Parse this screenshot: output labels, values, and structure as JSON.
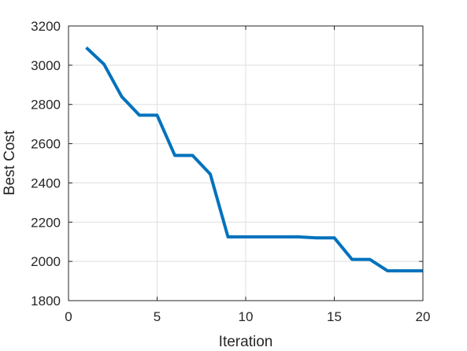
{
  "chart_data": {
    "type": "line",
    "title": "",
    "xlabel": "Iteration",
    "ylabel": "Best Cost",
    "xlim": [
      0,
      20
    ],
    "ylim": [
      1800,
      3200
    ],
    "xticks": [
      0,
      5,
      10,
      15,
      20
    ],
    "yticks": [
      1800,
      2000,
      2200,
      2400,
      2600,
      2800,
      3000,
      3200
    ],
    "grid": true,
    "series": [
      {
        "color": "#0072bd",
        "x": [
          1,
          2,
          3,
          4,
          5,
          6,
          7,
          8,
          9,
          10,
          11,
          12,
          13,
          14,
          15,
          16,
          17,
          18,
          19,
          20
        ],
        "y": [
          3090,
          3005,
          2840,
          2745,
          2745,
          2540,
          2540,
          2445,
          2125,
          2125,
          2125,
          2125,
          2125,
          2120,
          2120,
          2010,
          2010,
          1952,
          1952,
          1952
        ]
      }
    ]
  }
}
